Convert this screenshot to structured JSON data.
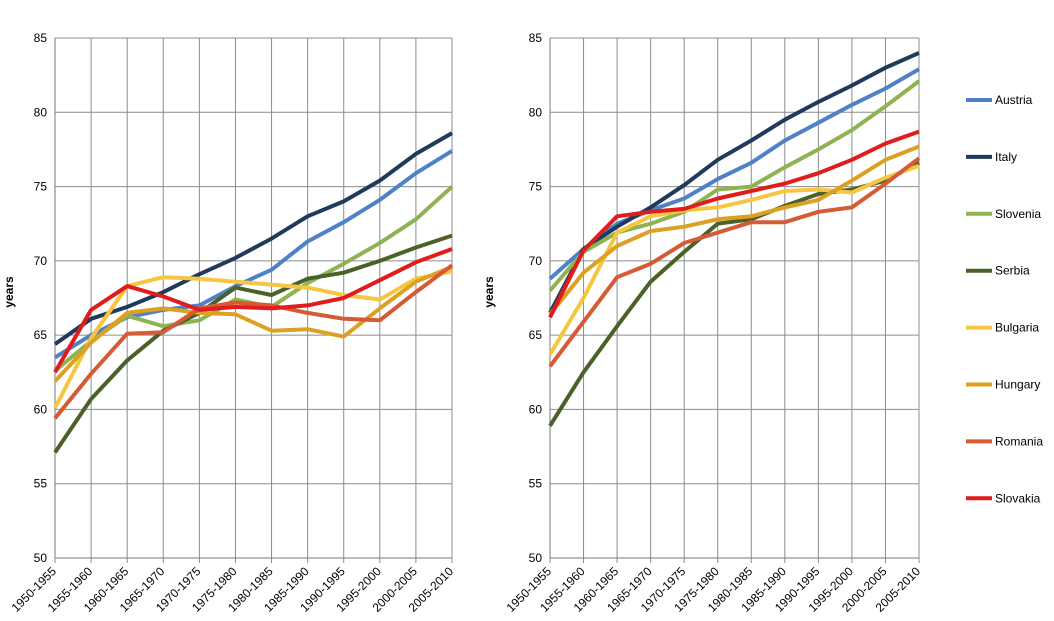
{
  "chart_data": [
    {
      "type": "line",
      "ylabel": "years",
      "xlabel": "",
      "ylim": [
        50,
        85
      ],
      "yticks": [
        50,
        55,
        60,
        65,
        70,
        75,
        80,
        85
      ],
      "grid": true,
      "categories": [
        "1950-1955",
        "1955-1960",
        "1960-1965",
        "1965-1970",
        "1970-1975",
        "1975-1980",
        "1980-1985",
        "1985-1990",
        "1990-1995",
        "1995-2000",
        "2000-2005",
        "2005-2010"
      ],
      "series": [
        {
          "name": "Austria",
          "color": "#4f81c7",
          "values": [
            63.5,
            65.0,
            66.2,
            66.7,
            67.0,
            68.3,
            69.4,
            71.3,
            72.6,
            74.1,
            75.9,
            77.4
          ]
        },
        {
          "name": "Italy",
          "color": "#1f3a5c",
          "values": [
            64.4,
            66.1,
            66.9,
            67.9,
            69.1,
            70.2,
            71.5,
            73.0,
            74.0,
            75.4,
            77.2,
            78.6
          ]
        },
        {
          "name": "Slovenia",
          "color": "#8fb352",
          "values": [
            62.6,
            64.6,
            66.3,
            65.6,
            66.0,
            67.4,
            66.9,
            68.5,
            69.8,
            71.2,
            72.8,
            75.0
          ]
        },
        {
          "name": "Serbia",
          "color": "#4a6228",
          "values": [
            57.1,
            60.7,
            63.3,
            65.3,
            66.5,
            68.2,
            67.7,
            68.8,
            69.2,
            70.0,
            70.9,
            71.7
          ]
        },
        {
          "name": "Bulgaria",
          "color": "#f6c640",
          "values": [
            60.1,
            64.8,
            68.3,
            68.9,
            68.8,
            68.6,
            68.4,
            68.2,
            67.7,
            67.4,
            68.8,
            69.3
          ]
        },
        {
          "name": "Hungary",
          "color": "#dca022",
          "values": [
            61.9,
            64.5,
            66.5,
            66.8,
            66.5,
            66.4,
            65.3,
            65.4,
            64.9,
            66.8,
            68.6,
            69.6
          ]
        },
        {
          "name": "Romania",
          "color": "#d55a36",
          "values": [
            59.4,
            62.4,
            65.1,
            65.2,
            66.8,
            67.2,
            67.0,
            66.5,
            66.1,
            66.0,
            67.9,
            69.7
          ]
        },
        {
          "name": "Slovakia",
          "color": "#e01c1c",
          "values": [
            62.5,
            66.7,
            68.3,
            67.6,
            66.7,
            66.9,
            66.8,
            67.0,
            67.5,
            68.7,
            69.9,
            70.8
          ]
        }
      ]
    },
    {
      "type": "line",
      "ylabel": "years",
      "xlabel": "",
      "ylim": [
        50,
        85
      ],
      "yticks": [
        50,
        55,
        60,
        65,
        70,
        75,
        80,
        85
      ],
      "grid": true,
      "legend_position": "right",
      "categories": [
        "1950-1955",
        "1955-1960",
        "1960-1965",
        "1965-1970",
        "1970-1975",
        "1975-1980",
        "1980-1985",
        "1985-1990",
        "1990-1995",
        "1995-2000",
        "2000-2005",
        "2005-2010"
      ],
      "series": [
        {
          "name": "Austria",
          "color": "#4f81c7",
          "values": [
            68.8,
            70.8,
            72.5,
            73.4,
            74.2,
            75.5,
            76.6,
            78.1,
            79.3,
            80.5,
            81.6,
            82.9
          ]
        },
        {
          "name": "Italy",
          "color": "#1f3a5c",
          "values": [
            66.5,
            70.8,
            72.3,
            73.6,
            75.1,
            76.8,
            78.1,
            79.5,
            80.7,
            81.8,
            83.0,
            84.0
          ]
        },
        {
          "name": "Slovenia",
          "color": "#8fb352",
          "values": [
            68.0,
            70.6,
            71.9,
            72.5,
            73.3,
            74.8,
            75.0,
            76.3,
            77.5,
            78.8,
            80.4,
            82.1
          ]
        },
        {
          "name": "Serbia",
          "color": "#4a6228",
          "values": [
            58.9,
            62.5,
            65.6,
            68.6,
            70.6,
            72.5,
            72.8,
            73.7,
            74.5,
            74.8,
            75.4,
            76.6
          ]
        },
        {
          "name": "Bulgaria",
          "color": "#f6c640",
          "values": [
            63.7,
            67.5,
            71.9,
            73.0,
            73.4,
            73.6,
            74.1,
            74.7,
            74.8,
            74.6,
            75.6,
            76.4
          ]
        },
        {
          "name": "Hungary",
          "color": "#dca022",
          "values": [
            66.4,
            69.2,
            71.0,
            72.0,
            72.3,
            72.8,
            73.0,
            73.6,
            74.1,
            75.4,
            76.8,
            77.7
          ]
        },
        {
          "name": "Romania",
          "color": "#d55a36",
          "values": [
            62.9,
            65.9,
            68.9,
            69.8,
            71.2,
            71.9,
            72.6,
            72.6,
            73.3,
            73.6,
            75.2,
            76.9
          ]
        },
        {
          "name": "Slovakia",
          "color": "#e01c1c",
          "values": [
            66.2,
            70.7,
            73.0,
            73.3,
            73.5,
            74.2,
            74.7,
            75.2,
            75.9,
            76.8,
            77.9,
            78.7
          ]
        }
      ]
    }
  ]
}
